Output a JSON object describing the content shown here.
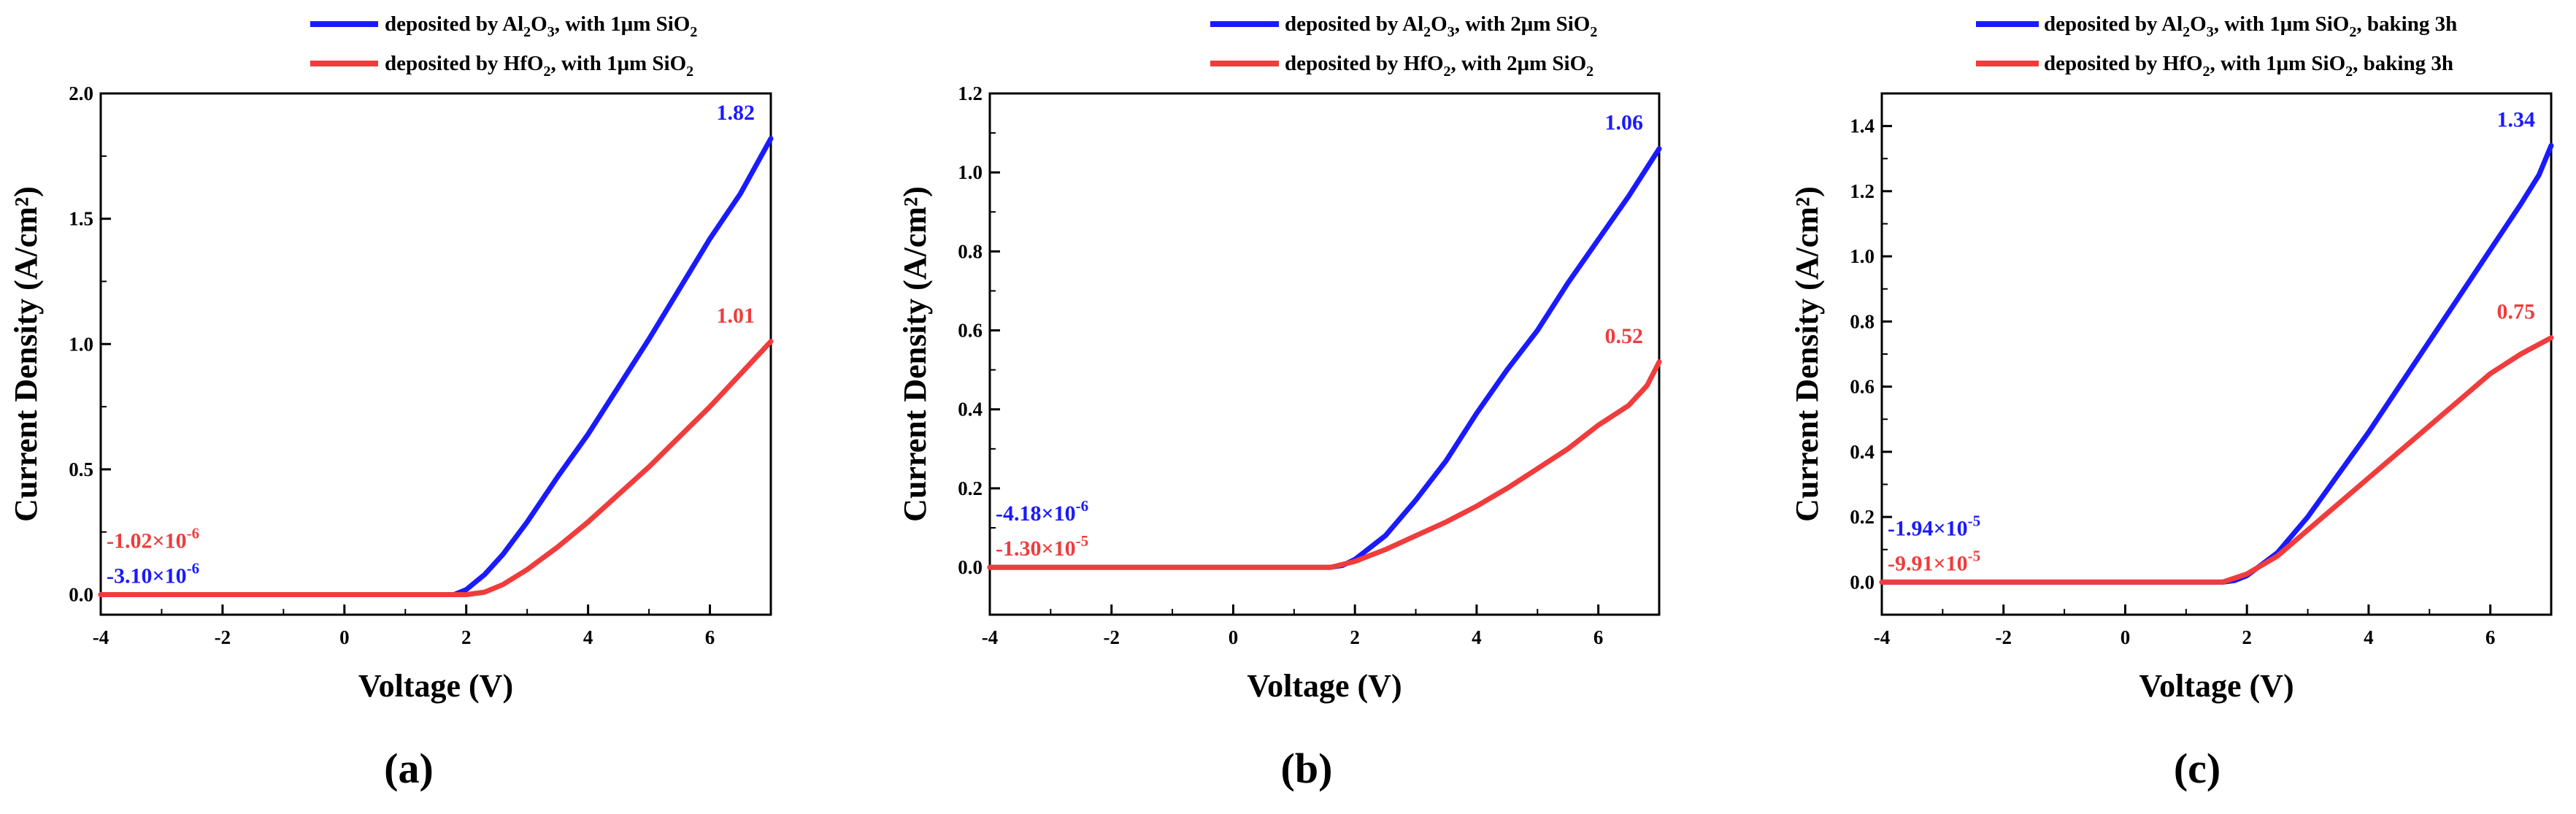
{
  "figure": {
    "panels": [
      {
        "panel_label": "(a)",
        "legend": [
          {
            "prefix": "deposited by Al",
            "sub1": "2",
            "mid1": "O",
            "sub2": "3",
            "suffix": ", with 1μm SiO",
            "sub3": "2",
            "tail": "",
            "color": "#1a1aff"
          },
          {
            "prefix": "deposited by HfO",
            "sub1": "2",
            "mid1": "",
            "sub2": "",
            "suffix": ", with 1μm SiO",
            "sub3": "2",
            "tail": "",
            "color": "#f03c3c"
          }
        ],
        "annotations": [
          {
            "text": "1.82",
            "color": "#1a1aff",
            "anchor": "end-value",
            "series": 0
          },
          {
            "text": "1.01",
            "color": "#f03c3c",
            "anchor": "end-value",
            "series": 1
          },
          {
            "text_base": "-1.02×10",
            "exp": "-6",
            "color": "#f03c3c",
            "anchor": "left-upper"
          },
          {
            "text_base": "-3.10×10",
            "exp": "-6",
            "color": "#1a1aff",
            "anchor": "left-lower"
          }
        ]
      },
      {
        "panel_label": "(b)",
        "legend": [
          {
            "prefix": "deposited by Al",
            "sub1": "2",
            "mid1": "O",
            "sub2": "3",
            "suffix": ", with 2μm SiO",
            "sub3": "2",
            "tail": "",
            "color": "#1a1aff"
          },
          {
            "prefix": "deposited by HfO",
            "sub1": "2",
            "mid1": "",
            "sub2": "",
            "suffix": ", with 2μm SiO",
            "sub3": "2",
            "tail": "",
            "color": "#f03c3c"
          }
        ],
        "annotations": [
          {
            "text": "1.06",
            "color": "#1a1aff",
            "anchor": "end-value",
            "series": 0
          },
          {
            "text": "0.52",
            "color": "#f03c3c",
            "anchor": "end-value",
            "series": 1
          },
          {
            "text_base": "-4.18×10",
            "exp": "-6",
            "color": "#1a1aff",
            "anchor": "left-upper"
          },
          {
            "text_base": "-1.30×10",
            "exp": "-5",
            "color": "#f03c3c",
            "anchor": "left-lower"
          }
        ]
      },
      {
        "panel_label": "(c)",
        "legend": [
          {
            "prefix": "deposited by Al",
            "sub1": "2",
            "mid1": "O",
            "sub2": "3",
            "suffix": ", with 1μm SiO",
            "sub3": "2",
            "tail": ", baking 3h",
            "color": "#1a1aff"
          },
          {
            "prefix": "deposited by HfO",
            "sub1": "2",
            "mid1": "",
            "sub2": "",
            "suffix": ", with 1μm SiO",
            "sub3": "2",
            "tail": ", baking 3h",
            "color": "#f03c3c"
          }
        ],
        "annotations": [
          {
            "text": "1.34",
            "color": "#1a1aff",
            "anchor": "end-value",
            "series": 0
          },
          {
            "text": "0.75",
            "color": "#f03c3c",
            "anchor": "end-value",
            "series": 1
          },
          {
            "text_base": "-1.94×10",
            "exp": "-5",
            "color": "#1a1aff",
            "anchor": "left-upper"
          },
          {
            "text_base": "-9.91×10",
            "exp": "-5",
            "color": "#f03c3c",
            "anchor": "left-lower"
          }
        ]
      }
    ]
  },
  "chart_data": [
    {
      "type": "line",
      "title": "",
      "xlabel": "Voltage (V)",
      "ylabel": "Current Density (A/cm²)",
      "xlim": [
        -4,
        7
      ],
      "ylim": [
        -0.08,
        2.0
      ],
      "xticks": [
        -4,
        -2,
        0,
        2,
        4,
        6
      ],
      "yticks": [
        0.0,
        0.5,
        1.0,
        1.5,
        2.0
      ],
      "ytick_labels": [
        "0.0",
        "0.5",
        "1.0",
        "1.5",
        "2.0"
      ],
      "xtick_labels": [
        "-4",
        "-2",
        "0",
        "2",
        "4",
        "6"
      ],
      "series": [
        {
          "name": "deposited by Al2O3, with 1μm SiO2",
          "color": "#1a1aff",
          "x": [
            -4,
            1.8,
            2.0,
            2.3,
            2.6,
            3.0,
            3.5,
            4.0,
            4.5,
            5.0,
            5.5,
            6.0,
            6.5,
            7.0
          ],
          "y": [
            -3.1e-06,
            0.0,
            0.02,
            0.08,
            0.16,
            0.29,
            0.47,
            0.64,
            0.83,
            1.02,
            1.22,
            1.42,
            1.6,
            1.82
          ]
        },
        {
          "name": "deposited by HfO2, with 1μm SiO2",
          "color": "#f03c3c",
          "x": [
            -4,
            2.0,
            2.3,
            2.6,
            3.0,
            3.5,
            4.0,
            4.5,
            5.0,
            5.5,
            6.0,
            6.5,
            7.0
          ],
          "y": [
            -1.02e-06,
            0.0,
            0.01,
            0.04,
            0.1,
            0.19,
            0.29,
            0.4,
            0.51,
            0.63,
            0.75,
            0.88,
            1.01
          ]
        }
      ]
    },
    {
      "type": "line",
      "title": "",
      "xlabel": "Voltage (V)",
      "ylabel": "Current Density (A/cm²)",
      "xlim": [
        -4,
        7
      ],
      "ylim": [
        -0.12,
        1.2
      ],
      "xticks": [
        -4,
        -2,
        0,
        2,
        4,
        6
      ],
      "yticks": [
        0.0,
        0.2,
        0.4,
        0.6,
        0.8,
        1.0,
        1.2
      ],
      "ytick_labels": [
        "0.0",
        "0.2",
        "0.4",
        "0.6",
        "0.8",
        "1.0",
        "1.2"
      ],
      "xtick_labels": [
        "-4",
        "-2",
        "0",
        "2",
        "4",
        "6"
      ],
      "series": [
        {
          "name": "deposited by Al2O3, with 2μm SiO2",
          "color": "#1a1aff",
          "x": [
            -4,
            1.6,
            1.8,
            2.0,
            2.5,
            3.0,
            3.5,
            4.0,
            4.5,
            5.0,
            5.5,
            6.0,
            6.5,
            7.0
          ],
          "y": [
            -4.18e-06,
            0.0,
            0.005,
            0.02,
            0.08,
            0.17,
            0.27,
            0.39,
            0.5,
            0.6,
            0.72,
            0.83,
            0.94,
            1.06
          ]
        },
        {
          "name": "deposited by HfO2, with 2μm SiO2",
          "color": "#f03c3c",
          "x": [
            -4,
            1.6,
            2.0,
            2.5,
            3.0,
            3.5,
            4.0,
            4.5,
            5.0,
            5.5,
            6.0,
            6.5,
            6.8,
            7.0
          ],
          "y": [
            -1.3e-05,
            0.0,
            0.015,
            0.045,
            0.08,
            0.115,
            0.155,
            0.2,
            0.25,
            0.3,
            0.36,
            0.41,
            0.46,
            0.52
          ]
        }
      ]
    },
    {
      "type": "line",
      "title": "",
      "xlabel": "Voltage (V)",
      "ylabel": "Current Density (A/cm²)",
      "xlim": [
        -4,
        7
      ],
      "ylim": [
        -0.1,
        1.5
      ],
      "xticks": [
        -4,
        -2,
        0,
        2,
        4,
        6
      ],
      "yticks": [
        0.0,
        0.2,
        0.4,
        0.6,
        0.8,
        1.0,
        1.2,
        1.4
      ],
      "ytick_labels": [
        "0.0",
        "0.2",
        "0.4",
        "0.6",
        "0.8",
        "1.0",
        "1.2",
        "1.4"
      ],
      "xtick_labels": [
        "-4",
        "-2",
        "0",
        "2",
        "4",
        "6"
      ],
      "series": [
        {
          "name": "deposited by Al2O3, with 1μm SiO2, baking 3h",
          "color": "#1a1aff",
          "x": [
            -4,
            1.6,
            1.8,
            2.0,
            2.5,
            3.0,
            3.5,
            4.0,
            4.5,
            5.0,
            5.5,
            6.0,
            6.5,
            6.8,
            7.0
          ],
          "y": [
            -1.94e-05,
            0.0,
            0.005,
            0.02,
            0.09,
            0.2,
            0.33,
            0.46,
            0.6,
            0.74,
            0.88,
            1.02,
            1.16,
            1.25,
            1.34
          ]
        },
        {
          "name": "deposited by HfO2, with 1μm SiO2, baking 3h",
          "color": "#f03c3c",
          "x": [
            -4,
            1.6,
            2.0,
            2.5,
            3.0,
            3.5,
            4.0,
            4.5,
            5.0,
            5.5,
            6.0,
            6.5,
            7.0
          ],
          "y": [
            -9.91e-05,
            0.0,
            0.025,
            0.08,
            0.16,
            0.24,
            0.32,
            0.4,
            0.48,
            0.56,
            0.64,
            0.7,
            0.75
          ]
        }
      ]
    }
  ]
}
